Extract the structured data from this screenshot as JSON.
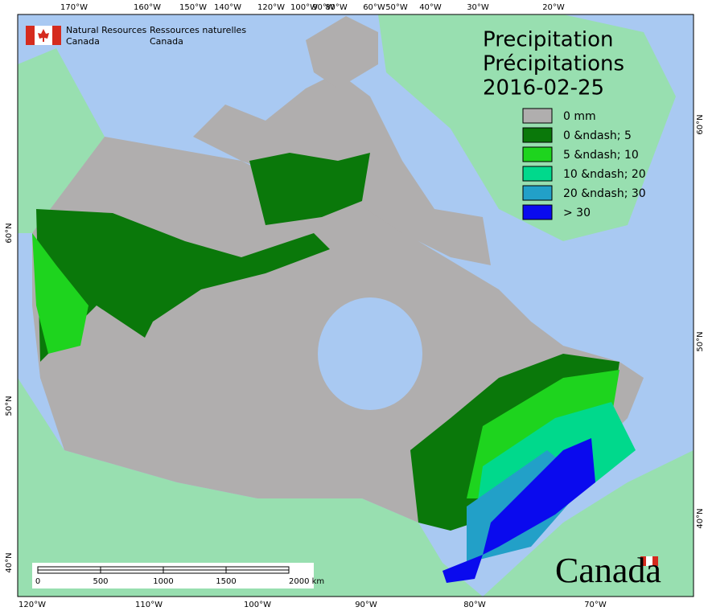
{
  "header": {
    "agency_en": [
      "Natural Resources",
      "Canada"
    ],
    "agency_fr": [
      "Ressources naturelles",
      "Canada"
    ]
  },
  "title": [
    "Precipitation",
    "Précipitations",
    "2016-02-25"
  ],
  "legend": [
    {
      "label": "0 mm",
      "color": "#b0aeae"
    },
    {
      "label": "0 &ndash; 5",
      "color": "#0a780a"
    },
    {
      "label": "5 &ndash; 10",
      "color": "#1ed41e"
    },
    {
      "label": "10 &ndash; 20",
      "color": "#00d98c"
    },
    {
      "label": "20 &ndash; 30",
      "color": "#22a0c8"
    },
    {
      "label": "> 30",
      "color": "#0a0aee"
    }
  ],
  "top_ticks": [
    "170°W",
    "160°W",
    "150°W",
    "140°W",
    "120°W",
    "100°W",
    "90°W",
    "80°W",
    "60°W",
    "50°W",
    "40°W",
    "30°W",
    "20°W"
  ],
  "bottom_ticks": [
    "120°W",
    "110°W",
    "100°W",
    "90°W",
    "80°W",
    "70°W"
  ],
  "left_ticks": [
    "60°N",
    "50°N",
    "40°N"
  ],
  "right_ticks": [
    "60°N",
    "50°N",
    "40°N"
  ],
  "scale_bar": [
    "0",
    "500",
    "1000",
    "1500",
    "2000 km"
  ],
  "wordmark": "Canada"
}
